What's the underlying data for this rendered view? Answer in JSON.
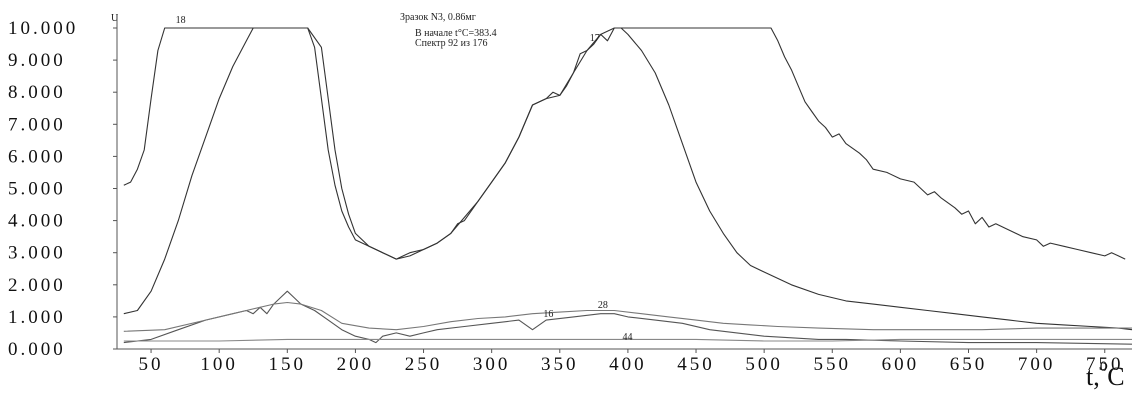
{
  "chart_data": {
    "type": "line",
    "title": "Зразок N3, 0.86мг",
    "annotations": [
      "В начале t°C=383.4",
      "Спектр 92 из 176"
    ],
    "ylabel": "U",
    "xlabel_prefix": "t,",
    "xlabel_sup": "0",
    "xlabel_unit": "C",
    "xlim": [
      25,
      770
    ],
    "ylim": [
      0,
      10
    ],
    "grid": false,
    "y_ticks": [
      "0.000",
      "1.000",
      "2.000",
      "3.000",
      "4.000",
      "5.000",
      "6.000",
      "7.000",
      "8.000",
      "9.000",
      "10.000"
    ],
    "x_ticks": [
      50,
      100,
      150,
      200,
      250,
      300,
      350,
      400,
      450,
      500,
      550,
      600,
      650,
      700,
      750
    ],
    "series": [
      {
        "name": "18",
        "color": "#333333",
        "points": [
          [
            30,
            5.1
          ],
          [
            35,
            5.2
          ],
          [
            40,
            5.6
          ],
          [
            45,
            6.2
          ],
          [
            50,
            7.8
          ],
          [
            55,
            9.3
          ],
          [
            60,
            10.0
          ],
          [
            70,
            10.0
          ],
          [
            100,
            10.0
          ],
          [
            130,
            10.0
          ],
          [
            150,
            10.0
          ],
          [
            165,
            10.0
          ],
          [
            170,
            9.4
          ],
          [
            175,
            7.8
          ],
          [
            180,
            6.2
          ],
          [
            185,
            5.1
          ],
          [
            190,
            4.3
          ],
          [
            195,
            3.8
          ],
          [
            200,
            3.4
          ],
          [
            210,
            3.2
          ],
          [
            220,
            3.0
          ],
          [
            230,
            2.8
          ],
          [
            240,
            3.0
          ],
          [
            250,
            3.1
          ],
          [
            260,
            3.3
          ],
          [
            270,
            3.6
          ],
          [
            275,
            3.9
          ],
          [
            280,
            4.0
          ],
          [
            290,
            4.6
          ],
          [
            300,
            5.2
          ],
          [
            310,
            5.8
          ],
          [
            320,
            6.6
          ],
          [
            330,
            7.6
          ],
          [
            340,
            7.8
          ],
          [
            345,
            8.0
          ],
          [
            350,
            7.9
          ],
          [
            355,
            8.2
          ],
          [
            360,
            8.6
          ],
          [
            365,
            9.2
          ],
          [
            370,
            9.3
          ],
          [
            375,
            9.5
          ],
          [
            380,
            9.8
          ],
          [
            385,
            9.6
          ],
          [
            390,
            10.0
          ],
          [
            400,
            10.0
          ],
          [
            420,
            10.0
          ],
          [
            450,
            10.0
          ],
          [
            480,
            10.0
          ],
          [
            505,
            10.0
          ],
          [
            510,
            9.6
          ],
          [
            515,
            9.1
          ],
          [
            520,
            8.7
          ],
          [
            525,
            8.2
          ],
          [
            530,
            7.7
          ],
          [
            535,
            7.4
          ],
          [
            540,
            7.1
          ],
          [
            545,
            6.9
          ],
          [
            550,
            6.6
          ],
          [
            555,
            6.7
          ],
          [
            560,
            6.4
          ],
          [
            570,
            6.1
          ],
          [
            575,
            5.9
          ],
          [
            580,
            5.6
          ],
          [
            590,
            5.5
          ],
          [
            600,
            5.3
          ],
          [
            610,
            5.2
          ],
          [
            620,
            4.8
          ],
          [
            625,
            4.9
          ],
          [
            630,
            4.7
          ],
          [
            640,
            4.4
          ],
          [
            645,
            4.2
          ],
          [
            650,
            4.3
          ],
          [
            655,
            3.9
          ],
          [
            660,
            4.1
          ],
          [
            665,
            3.8
          ],
          [
            670,
            3.9
          ],
          [
            680,
            3.7
          ],
          [
            690,
            3.5
          ],
          [
            700,
            3.4
          ],
          [
            705,
            3.2
          ],
          [
            710,
            3.3
          ],
          [
            720,
            3.2
          ],
          [
            730,
            3.1
          ],
          [
            740,
            3.0
          ],
          [
            750,
            2.9
          ],
          [
            755,
            3.0
          ],
          [
            760,
            2.9
          ],
          [
            765,
            2.8
          ]
        ]
      },
      {
        "name": "17",
        "color": "#333333",
        "points": [
          [
            30,
            1.1
          ],
          [
            40,
            1.2
          ],
          [
            50,
            1.8
          ],
          [
            60,
            2.8
          ],
          [
            70,
            4.0
          ],
          [
            80,
            5.4
          ],
          [
            90,
            6.6
          ],
          [
            100,
            7.8
          ],
          [
            110,
            8.8
          ],
          [
            120,
            9.6
          ],
          [
            125,
            10.0
          ],
          [
            140,
            10.0
          ],
          [
            165,
            10.0
          ],
          [
            175,
            9.4
          ],
          [
            180,
            7.8
          ],
          [
            185,
            6.2
          ],
          [
            190,
            5.0
          ],
          [
            195,
            4.2
          ],
          [
            200,
            3.6
          ],
          [
            210,
            3.2
          ],
          [
            220,
            3.0
          ],
          [
            230,
            2.8
          ],
          [
            240,
            2.9
          ],
          [
            250,
            3.1
          ],
          [
            260,
            3.3
          ],
          [
            270,
            3.6
          ],
          [
            280,
            4.1
          ],
          [
            290,
            4.6
          ],
          [
            300,
            5.2
          ],
          [
            310,
            5.8
          ],
          [
            320,
            6.6
          ],
          [
            330,
            7.6
          ],
          [
            340,
            7.8
          ],
          [
            350,
            7.9
          ],
          [
            360,
            8.6
          ],
          [
            370,
            9.3
          ],
          [
            380,
            9.8
          ],
          [
            390,
            10.0
          ],
          [
            395,
            10.0
          ],
          [
            400,
            9.8
          ],
          [
            410,
            9.3
          ],
          [
            420,
            8.6
          ],
          [
            430,
            7.6
          ],
          [
            440,
            6.4
          ],
          [
            450,
            5.2
          ],
          [
            460,
            4.3
          ],
          [
            470,
            3.6
          ],
          [
            480,
            3.0
          ],
          [
            490,
            2.6
          ],
          [
            500,
            2.4
          ],
          [
            520,
            2.0
          ],
          [
            540,
            1.7
          ],
          [
            560,
            1.5
          ],
          [
            580,
            1.4
          ],
          [
            600,
            1.3
          ],
          [
            620,
            1.2
          ],
          [
            640,
            1.1
          ],
          [
            660,
            1.0
          ],
          [
            680,
            0.9
          ],
          [
            700,
            0.8
          ],
          [
            720,
            0.75
          ],
          [
            740,
            0.7
          ],
          [
            760,
            0.65
          ],
          [
            770,
            0.6
          ]
        ]
      },
      {
        "name": "16",
        "color": "#555555",
        "points": [
          [
            30,
            0.2
          ],
          [
            50,
            0.3
          ],
          [
            70,
            0.6
          ],
          [
            90,
            0.9
          ],
          [
            110,
            1.1
          ],
          [
            120,
            1.2
          ],
          [
            125,
            1.1
          ],
          [
            130,
            1.3
          ],
          [
            135,
            1.1
          ],
          [
            140,
            1.4
          ],
          [
            145,
            1.6
          ],
          [
            150,
            1.8
          ],
          [
            155,
            1.6
          ],
          [
            160,
            1.4
          ],
          [
            170,
            1.2
          ],
          [
            180,
            0.9
          ],
          [
            190,
            0.6
          ],
          [
            200,
            0.4
          ],
          [
            210,
            0.3
          ],
          [
            215,
            0.2
          ],
          [
            220,
            0.4
          ],
          [
            230,
            0.5
          ],
          [
            240,
            0.4
          ],
          [
            250,
            0.5
          ],
          [
            260,
            0.6
          ],
          [
            280,
            0.7
          ],
          [
            300,
            0.8
          ],
          [
            320,
            0.9
          ],
          [
            330,
            0.6
          ],
          [
            340,
            0.9
          ],
          [
            360,
            1.0
          ],
          [
            380,
            1.1
          ],
          [
            390,
            1.1
          ],
          [
            400,
            1.0
          ],
          [
            420,
            0.9
          ],
          [
            440,
            0.8
          ],
          [
            460,
            0.6
          ],
          [
            480,
            0.5
          ],
          [
            500,
            0.4
          ],
          [
            520,
            0.35
          ],
          [
            540,
            0.3
          ],
          [
            560,
            0.3
          ],
          [
            600,
            0.25
          ],
          [
            650,
            0.2
          ],
          [
            700,
            0.2
          ],
          [
            770,
            0.15
          ]
        ]
      },
      {
        "name": "28",
        "color": "#777777",
        "points": [
          [
            30,
            0.55
          ],
          [
            60,
            0.6
          ],
          [
            90,
            0.9
          ],
          [
            120,
            1.2
          ],
          [
            140,
            1.4
          ],
          [
            150,
            1.45
          ],
          [
            160,
            1.4
          ],
          [
            175,
            1.2
          ],
          [
            190,
            0.8
          ],
          [
            210,
            0.65
          ],
          [
            230,
            0.6
          ],
          [
            250,
            0.7
          ],
          [
            270,
            0.85
          ],
          [
            290,
            0.95
          ],
          [
            310,
            1.0
          ],
          [
            330,
            1.1
          ],
          [
            350,
            1.15
          ],
          [
            370,
            1.2
          ],
          [
            390,
            1.2
          ],
          [
            410,
            1.1
          ],
          [
            430,
            1.0
          ],
          [
            450,
            0.9
          ],
          [
            470,
            0.8
          ],
          [
            490,
            0.75
          ],
          [
            510,
            0.7
          ],
          [
            540,
            0.65
          ],
          [
            580,
            0.6
          ],
          [
            620,
            0.6
          ],
          [
            660,
            0.6
          ],
          [
            700,
            0.65
          ],
          [
            740,
            0.65
          ],
          [
            770,
            0.65
          ]
        ]
      },
      {
        "name": "44",
        "color": "#888888",
        "points": [
          [
            30,
            0.25
          ],
          [
            100,
            0.25
          ],
          [
            150,
            0.3
          ],
          [
            200,
            0.3
          ],
          [
            250,
            0.3
          ],
          [
            300,
            0.3
          ],
          [
            350,
            0.3
          ],
          [
            400,
            0.3
          ],
          [
            450,
            0.3
          ],
          [
            500,
            0.25
          ],
          [
            550,
            0.25
          ],
          [
            600,
            0.3
          ],
          [
            650,
            0.3
          ],
          [
            700,
            0.3
          ],
          [
            770,
            0.3
          ]
        ]
      }
    ],
    "series_labels": [
      {
        "text": "18",
        "x": 68,
        "y": 10.15
      },
      {
        "text": "17",
        "x": 372,
        "y": 9.6
      },
      {
        "text": "16",
        "x": 338,
        "y": 1.0
      },
      {
        "text": "28",
        "x": 378,
        "y": 1.28
      },
      {
        "text": "44",
        "x": 396,
        "y": 0.28
      }
    ]
  }
}
